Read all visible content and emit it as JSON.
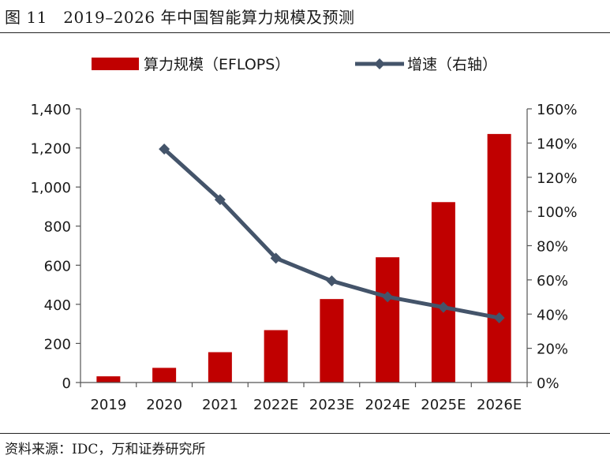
{
  "figure": {
    "title": "图 11　2019–2026 年中国智能算力规模及预测",
    "source": "资料来源：IDC，万和证券研究所"
  },
  "chart_data": {
    "type": "bar",
    "categories": [
      "2019",
      "2020",
      "2021",
      "2022E",
      "2023E",
      "2024E",
      "2025E",
      "2026E"
    ],
    "series": [
      {
        "name": "算力规模（EFLOPS）",
        "type": "bar",
        "axis": "left",
        "color": "#c00000",
        "values": [
          31.7,
          75.0,
          155.2,
          268.0,
          427.0,
          640.7,
          922.8,
          1271.4
        ]
      },
      {
        "name": "增速（右轴）",
        "type": "line",
        "axis": "right",
        "color": "#44546a",
        "values": [
          null,
          1.365,
          1.069,
          0.727,
          0.594,
          0.501,
          0.44,
          0.378
        ]
      }
    ],
    "left_axis": {
      "min": 0,
      "max": 1400,
      "step": 200,
      "tick_labels": [
        "0",
        "200",
        "400",
        "600",
        "800",
        "1,000",
        "1,200",
        "1,400"
      ]
    },
    "right_axis": {
      "min": 0,
      "max": 1.6,
      "step": 0.2,
      "tick_labels": [
        "0%",
        "20%",
        "40%",
        "60%",
        "80%",
        "100%",
        "120%",
        "140%",
        "160%"
      ]
    },
    "legend": {
      "position": "top"
    },
    "grid": false
  }
}
